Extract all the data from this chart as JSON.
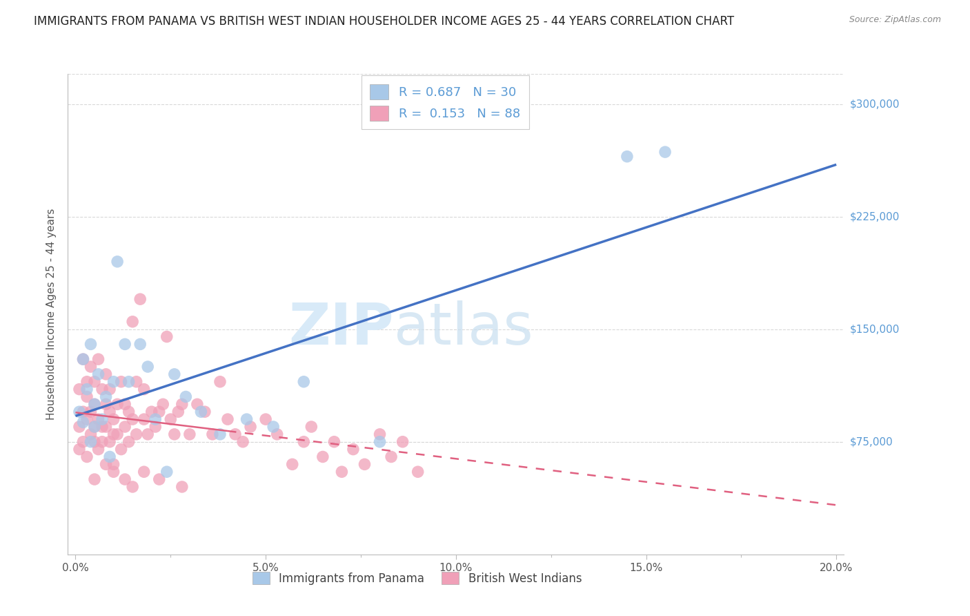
{
  "title": "IMMIGRANTS FROM PANAMA VS BRITISH WEST INDIAN HOUSEHOLDER INCOME AGES 25 - 44 YEARS CORRELATION CHART",
  "source": "Source: ZipAtlas.com",
  "ylabel": "Householder Income Ages 25 - 44 years",
  "xlabel_major_ticks": [
    0.0,
    0.05,
    0.1,
    0.15,
    0.2
  ],
  "xlabel_major_labels": [
    "0.0%",
    "5.0%",
    "10.0%",
    "15.0%",
    "20.0%"
  ],
  "xlabel_minor_ticks": [
    0.025,
    0.075,
    0.125,
    0.175
  ],
  "ytick_labels": [
    "$75,000",
    "$150,000",
    "$225,000",
    "$300,000"
  ],
  "ytick_vals": [
    75000,
    150000,
    225000,
    300000
  ],
  "ylim": [
    0,
    320000
  ],
  "xlim": [
    -0.002,
    0.202
  ],
  "legend_labels": [
    "Immigrants from Panama",
    "British West Indians"
  ],
  "R_panama": 0.687,
  "N_panama": 30,
  "R_bwi": 0.153,
  "N_bwi": 88,
  "color_blue": "#A8C8E8",
  "color_pink": "#F0A0B8",
  "color_blue_line": "#4472C4",
  "color_pink_line": "#E06080",
  "color_blue_text": "#5B9BD5",
  "color_text_dark": "#333333",
  "background": "#ffffff",
  "grid_color": "#d9d9d9",
  "watermark_color": "#D8EAF8",
  "panama_x": [
    0.001,
    0.002,
    0.002,
    0.003,
    0.004,
    0.004,
    0.005,
    0.005,
    0.006,
    0.007,
    0.008,
    0.009,
    0.01,
    0.011,
    0.013,
    0.014,
    0.017,
    0.019,
    0.021,
    0.024,
    0.026,
    0.029,
    0.033,
    0.038,
    0.045,
    0.052,
    0.06,
    0.08,
    0.145,
    0.155
  ],
  "panama_y": [
    95000,
    88000,
    130000,
    110000,
    75000,
    140000,
    100000,
    85000,
    120000,
    90000,
    105000,
    65000,
    115000,
    195000,
    140000,
    115000,
    140000,
    125000,
    90000,
    55000,
    120000,
    105000,
    95000,
    80000,
    90000,
    85000,
    115000,
    75000,
    265000,
    268000
  ],
  "bwi_x": [
    0.001,
    0.001,
    0.001,
    0.002,
    0.002,
    0.002,
    0.003,
    0.003,
    0.003,
    0.003,
    0.004,
    0.004,
    0.004,
    0.005,
    0.005,
    0.005,
    0.005,
    0.006,
    0.006,
    0.006,
    0.007,
    0.007,
    0.007,
    0.008,
    0.008,
    0.008,
    0.009,
    0.009,
    0.009,
    0.01,
    0.01,
    0.01,
    0.011,
    0.011,
    0.012,
    0.012,
    0.013,
    0.013,
    0.014,
    0.014,
    0.015,
    0.015,
    0.016,
    0.016,
    0.017,
    0.018,
    0.018,
    0.019,
    0.02,
    0.021,
    0.022,
    0.023,
    0.024,
    0.025,
    0.026,
    0.027,
    0.028,
    0.03,
    0.032,
    0.034,
    0.036,
    0.038,
    0.04,
    0.042,
    0.044,
    0.046,
    0.05,
    0.053,
    0.057,
    0.06,
    0.062,
    0.065,
    0.068,
    0.07,
    0.073,
    0.076,
    0.08,
    0.083,
    0.086,
    0.09,
    0.005,
    0.008,
    0.01,
    0.013,
    0.015,
    0.018,
    0.022,
    0.028
  ],
  "bwi_y": [
    110000,
    85000,
    70000,
    130000,
    95000,
    75000,
    115000,
    90000,
    105000,
    65000,
    125000,
    80000,
    95000,
    85000,
    115000,
    75000,
    100000,
    130000,
    90000,
    70000,
    110000,
    85000,
    75000,
    100000,
    85000,
    120000,
    95000,
    75000,
    110000,
    90000,
    80000,
    60000,
    100000,
    80000,
    115000,
    70000,
    100000,
    85000,
    95000,
    75000,
    155000,
    90000,
    115000,
    80000,
    170000,
    90000,
    110000,
    80000,
    95000,
    85000,
    95000,
    100000,
    145000,
    90000,
    80000,
    95000,
    100000,
    80000,
    100000,
    95000,
    80000,
    115000,
    90000,
    80000,
    75000,
    85000,
    90000,
    80000,
    60000,
    75000,
    85000,
    65000,
    75000,
    55000,
    70000,
    60000,
    80000,
    65000,
    75000,
    55000,
    50000,
    60000,
    55000,
    50000,
    45000,
    55000,
    50000,
    45000
  ]
}
